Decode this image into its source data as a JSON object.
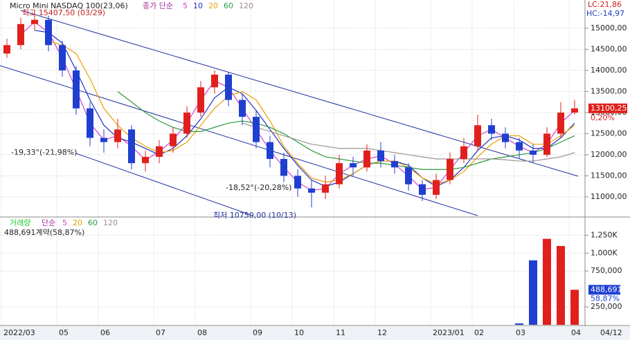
{
  "chart_data": [
    {
      "type": "candlestick",
      "title": "Micro Mini NASDAQ 100(23,06)",
      "legend_prefix": "종가 단순",
      "lc": "LC:21,86",
      "hc": "HC:-14,97",
      "categories": [
        "2022/03",
        null,
        null,
        null,
        "05",
        null,
        null,
        "06",
        null,
        null,
        null,
        "07",
        null,
        null,
        "08",
        null,
        null,
        null,
        "09",
        null,
        null,
        "10",
        null,
        null,
        "11",
        null,
        null,
        "12",
        null,
        null,
        null,
        "2023/01",
        null,
        null,
        "02",
        null,
        null,
        "03",
        null,
        null,
        null,
        "04"
      ],
      "last_date": "04/12",
      "open": [
        14400,
        14600,
        15100,
        15200,
        14600,
        14000,
        13100,
        12400,
        12300,
        12600,
        11800,
        11950,
        12200,
        12500,
        13000,
        13600,
        13900,
        13300,
        12900,
        12300,
        11900,
        11500,
        11200,
        11100,
        11300,
        11800,
        11700,
        12100,
        11850,
        11700,
        11300,
        11050,
        11400,
        11900,
        12200,
        12700,
        12500,
        12300,
        12100,
        12000,
        12500,
        13000
      ],
      "high": [
        14750,
        15250,
        15407.5,
        15300,
        14700,
        14100,
        13250,
        12600,
        12850,
        12700,
        12100,
        12350,
        12650,
        13150,
        13750,
        14000,
        13950,
        13450,
        13050,
        12450,
        12050,
        11650,
        11400,
        11500,
        12000,
        11950,
        12250,
        12300,
        12000,
        11800,
        11400,
        11550,
        12050,
        12400,
        12950,
        12850,
        12650,
        12400,
        12250,
        12650,
        13250,
        13300
      ],
      "low": [
        14300,
        14500,
        14950,
        14450,
        13850,
        12950,
        12200,
        12050,
        12150,
        11650,
        11600,
        11800,
        12050,
        12400,
        12900,
        13450,
        13150,
        12700,
        12150,
        11700,
        11350,
        11000,
        10750,
        10950,
        11200,
        11500,
        11600,
        11700,
        11550,
        11150,
        10900,
        10950,
        11300,
        11800,
        12100,
        12350,
        12150,
        11900,
        11800,
        11950,
        12400,
        12950
      ],
      "close": [
        14600,
        15100,
        15200,
        14600,
        14000,
        13100,
        12400,
        12300,
        12600,
        11800,
        11950,
        12200,
        12500,
        13000,
        13600,
        13900,
        13300,
        12900,
        12300,
        11900,
        11500,
        11200,
        11100,
        11300,
        11800,
        11700,
        12100,
        11850,
        11700,
        11300,
        11050,
        11400,
        11900,
        12200,
        12700,
        12500,
        12300,
        12100,
        12000,
        12500,
        13000,
        13100
      ],
      "up_color": "#e0201c",
      "down_color": "#1f3fd0",
      "series": [
        {
          "name": "5",
          "color": "#d040d0",
          "values": [
            null,
            14850,
            15150,
            14900,
            14300,
            13550,
            12750,
            12350,
            12450,
            12200,
            11875,
            12075,
            12350,
            12750,
            13300,
            13750,
            13600,
            13100,
            12600,
            12100,
            11700,
            11350,
            11150,
            11200,
            11550,
            11750,
            11900,
            11975,
            11775,
            11500,
            11175,
            11225,
            11650,
            12050,
            12450,
            12600,
            12400,
            12200,
            12050,
            12250,
            12750,
            13050
          ]
        },
        {
          "name": "10",
          "color": "#2030c0",
          "values": [
            null,
            null,
            14950,
            14900,
            14650,
            14000,
            13300,
            12700,
            12400,
            12300,
            12150,
            12000,
            12150,
            12450,
            12850,
            13350,
            13600,
            13450,
            13050,
            12600,
            12150,
            11750,
            11400,
            11250,
            11350,
            11550,
            11750,
            11850,
            11850,
            11750,
            11450,
            11250,
            11400,
            11700,
            12100,
            12400,
            12450,
            12350,
            12150,
            12150,
            12400,
            12750
          ]
        },
        {
          "name": "20",
          "color": "#e8a000",
          "values": [
            null,
            null,
            null,
            14700,
            14600,
            14400,
            13800,
            13100,
            12700,
            12400,
            12200,
            12050,
            12100,
            12300,
            12700,
            13100,
            13400,
            13500,
            13300,
            12800,
            12200,
            11800,
            11450,
            11350,
            11400,
            11550,
            11750,
            11850,
            11850,
            11700,
            11450,
            11300,
            11400,
            11600,
            11950,
            12250,
            12450,
            12450,
            12250,
            12250,
            12450,
            12700
          ]
        },
        {
          "name": "60",
          "color": "#2a9a40",
          "values": [
            null,
            null,
            null,
            null,
            null,
            null,
            null,
            null,
            13500,
            13250,
            13000,
            12800,
            12650,
            12550,
            12550,
            12650,
            12750,
            12800,
            12750,
            12650,
            12500,
            12300,
            12100,
            11950,
            11900,
            11850,
            11800,
            11800,
            11750,
            11700,
            11650,
            11650,
            11650,
            11700,
            11800,
            11900,
            11950,
            12000,
            12050,
            12150,
            12300,
            12450
          ]
        },
        {
          "name": "120",
          "color": "#a09090",
          "values": [
            null,
            null,
            null,
            null,
            null,
            null,
            null,
            null,
            null,
            null,
            null,
            null,
            null,
            null,
            null,
            null,
            null,
            12750,
            12650,
            12550,
            12450,
            12350,
            12250,
            12200,
            12150,
            12150,
            12150,
            12100,
            12050,
            12000,
            11950,
            11900,
            11900,
            11900,
            11900,
            11900,
            11880,
            11850,
            11850,
            11900,
            11950,
            12050
          ]
        }
      ],
      "trendlines": [
        {
          "from": [
            1,
            15424
          ],
          "to": [
            41.25,
            11490
          ],
          "color": "#1f2fa0"
        },
        {
          "from": [
            -0.5,
            14113
          ],
          "to": [
            34,
            10556
          ],
          "color": "#1f2fa0"
        },
        {
          "from": [
            5,
            12031
          ],
          "to": [
            17.75,
            10556
          ],
          "color": "#1f2fa0"
        }
      ],
      "max_label": {
        "value": 15407.5,
        "label": "최고 15407,50 (03/29)"
      },
      "min_label": {
        "value": 10750,
        "label": "최저 10750,00 (10/13)"
      },
      "angle_labels": [
        "-19,33°(-21,98%)",
        "-18,52°(-20,28%)"
      ],
      "last": {
        "value": 13100.25,
        "label": "13100,25"
      },
      "change": {
        "value": 0.2,
        "label": "0,20%"
      },
      "ylim": [
        10540,
        15670
      ],
      "yticks": [
        {
          "value": 11000,
          "label": "11000,00"
        },
        {
          "value": 11500,
          "label": "11500,00"
        },
        {
          "value": 12000,
          "label": "12000,00"
        },
        {
          "value": 12500,
          "label": "12500,00"
        },
        {
          "value": 13000,
          "label": "13000,00"
        },
        {
          "value": 13500,
          "label": "13500,00"
        },
        {
          "value": 14000,
          "label": "14000,00"
        },
        {
          "value": 14500,
          "label": "14500,00"
        },
        {
          "value": 15000,
          "label": "15000,00"
        }
      ],
      "grid": true
    },
    {
      "type": "bar",
      "title": "거래량",
      "legend_prefix": "단순",
      "legend": [
        {
          "name": "5",
          "color": "#d040d0"
        },
        {
          "name": "20",
          "color": "#e8a000"
        },
        {
          "name": "60",
          "color": "#2a9a40"
        },
        {
          "name": "120",
          "color": "#a09090"
        }
      ],
      "info": "488,691계약(58,87%)",
      "values": [
        0,
        0,
        0,
        0,
        0,
        0,
        0,
        0,
        0,
        0,
        0,
        0,
        0,
        0,
        0,
        0,
        0,
        0,
        0,
        0,
        0,
        0,
        0,
        0,
        0,
        0,
        0,
        0,
        0,
        0,
        0,
        0,
        0,
        0,
        0,
        0,
        0,
        20000,
        900000,
        1200000,
        1100000,
        488691
      ],
      "last": {
        "value": 488691,
        "label": "488,691"
      },
      "ratio": "58,87%",
      "ylim": [
        0,
        1495000
      ],
      "yticks": [
        {
          "value": 250000,
          "label": "250,000"
        },
        {
          "value": 750000,
          "label": "750,000"
        },
        {
          "value": 1000000,
          "label": "1,000K"
        },
        {
          "value": 1250000,
          "label": "1,250K"
        }
      ],
      "grid": true
    }
  ]
}
